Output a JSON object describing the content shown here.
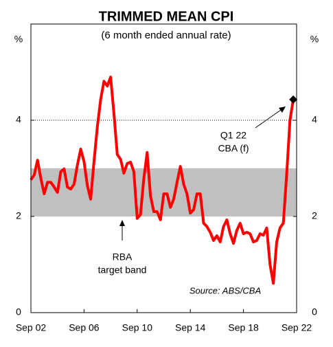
{
  "chart_data": {
    "type": "line",
    "title": "TRIMMED MEAN CPI",
    "subtitle": "(6 month ended annual rate)",
    "y_label": "%",
    "y2_label": "%",
    "categories": [
      "Sep 02",
      null,
      null,
      null,
      null,
      null,
      null,
      null,
      null,
      null,
      null,
      null,
      null,
      null,
      null,
      null,
      "Sep 06",
      null,
      null,
      null,
      null,
      null,
      null,
      null,
      null,
      null,
      null,
      null,
      null,
      null,
      null,
      null,
      "Sep 10",
      null,
      null,
      null,
      null,
      null,
      null,
      null,
      null,
      null,
      null,
      null,
      null,
      null,
      null,
      null,
      "Sep 14",
      null,
      null,
      null,
      null,
      null,
      null,
      null,
      null,
      null,
      null,
      null,
      null,
      null,
      null,
      null,
      "Sep 18",
      null,
      null,
      null,
      null,
      null,
      null,
      null,
      null,
      null,
      null,
      null,
      null,
      null,
      null,
      null,
      "Sep 22"
    ],
    "series": [
      {
        "color": "#ff0000",
        "end_marker": "diamond",
        "end_marker_color": "#000000",
        "values": [
          2.76,
          2.86,
          3.17,
          2.79,
          2.47,
          2.71,
          2.71,
          2.61,
          2.5,
          2.93,
          2.99,
          2.61,
          2.57,
          2.67,
          3.07,
          3.4,
          3.14,
          2.64,
          2.36,
          3.14,
          3.86,
          4.43,
          4.81,
          4.71,
          4.9,
          4.14,
          3.29,
          3.19,
          2.9,
          3.1,
          3.13,
          2.93,
          1.96,
          2.04,
          2.79,
          3.33,
          2.43,
          2.1,
          2.1,
          1.93,
          2.47,
          2.47,
          2.19,
          2.36,
          2.71,
          3.04,
          2.67,
          2.47,
          2.07,
          2.14,
          2.47,
          2.47,
          1.86,
          1.79,
          1.67,
          1.5,
          1.6,
          1.47,
          1.79,
          1.93,
          1.64,
          1.44,
          1.71,
          1.86,
          1.64,
          1.67,
          1.64,
          1.47,
          1.5,
          1.64,
          1.61,
          1.76,
          1.0,
          0.61,
          1.47,
          1.76,
          1.86,
          2.86,
          4.0,
          4.43,
          null
        ]
      }
    ],
    "band": {
      "range": [
        2,
        3
      ],
      "color": "#c0c0c0"
    },
    "ylim": [
      0,
      6
    ],
    "yticks": [
      0,
      2,
      4
    ],
    "y2lim": [
      0,
      6
    ],
    "y2ticks": [
      0,
      2,
      4
    ],
    "dotted_gridline": 4,
    "annotations": [
      [
        "RBA",
        "target band"
      ],
      [
        "Q1 22",
        "CBA (f)"
      ]
    ],
    "source": "Source: ABS/CBA"
  }
}
